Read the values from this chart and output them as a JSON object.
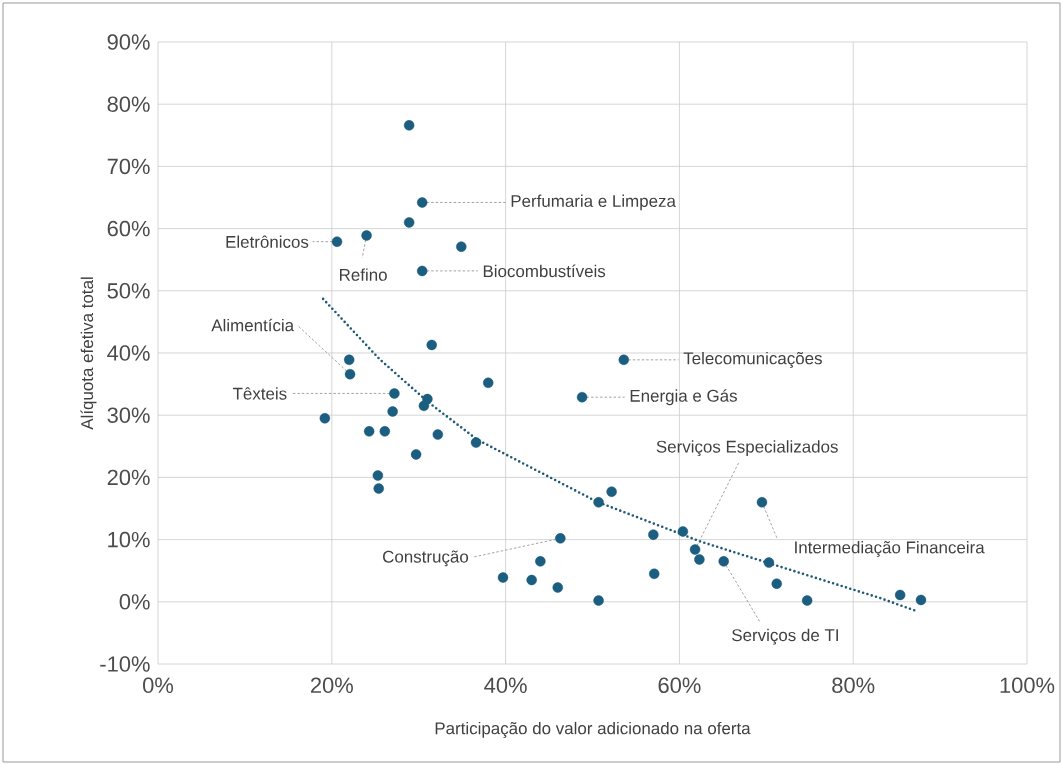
{
  "chart_data": {
    "type": "scatter",
    "xlabel": "Participação do valor adicionado na oferta",
    "ylabel": "Alíquota efetiva total",
    "xlim": [
      0,
      100
    ],
    "ylim": [
      -10,
      90
    ],
    "xticks": [
      {
        "value": 0,
        "label": "0%"
      },
      {
        "value": 20,
        "label": "20%"
      },
      {
        "value": 40,
        "label": "40%"
      },
      {
        "value": 60,
        "label": "60%"
      },
      {
        "value": 80,
        "label": "80%"
      },
      {
        "value": 100,
        "label": "100%"
      }
    ],
    "yticks": [
      {
        "value": -10,
        "label": "-10%"
      },
      {
        "value": 0,
        "label": "0%"
      },
      {
        "value": 10,
        "label": "10%"
      },
      {
        "value": 20,
        "label": "20%"
      },
      {
        "value": 30,
        "label": "30%"
      },
      {
        "value": 40,
        "label": "40%"
      },
      {
        "value": 50,
        "label": "50%"
      },
      {
        "value": 60,
        "label": "60%"
      },
      {
        "value": 70,
        "label": "70%"
      },
      {
        "value": 80,
        "label": "80%"
      },
      {
        "value": 90,
        "label": "90%"
      }
    ],
    "grid": true,
    "series": [
      {
        "color": "#1b5e80",
        "marker": "circle",
        "x": [
          28.9,
          30.4,
          28.9,
          20.6,
          24.0,
          34.9,
          30.4,
          31.5,
          22.0,
          22.1,
          38.0,
          27.2,
          31.0,
          30.6,
          27.0,
          19.2,
          24.3,
          26.1,
          32.2,
          36.6,
          29.7,
          25.3,
          25.4,
          53.6,
          48.8,
          52.2,
          50.7,
          46.3,
          44.0,
          39.7,
          43.0,
          46.0,
          50.7,
          57.0,
          60.4,
          61.8,
          62.3,
          57.1,
          69.5,
          65.1,
          70.3,
          71.2,
          74.7,
          85.4,
          87.8
        ],
        "values": [
          76.6,
          64.2,
          61.0,
          57.9,
          58.9,
          57.1,
          53.2,
          41.3,
          38.9,
          36.6,
          35.2,
          33.5,
          32.6,
          31.5,
          30.6,
          29.5,
          27.4,
          27.4,
          26.9,
          25.6,
          23.7,
          20.3,
          18.2,
          38.9,
          32.9,
          17.7,
          16.0,
          10.2,
          6.5,
          3.9,
          3.5,
          2.3,
          0.2,
          10.8,
          11.3,
          8.4,
          6.8,
          4.5,
          16.0,
          6.5,
          6.3,
          2.9,
          0.2,
          1.1,
          0.3
        ]
      },
      {
        "type": "line",
        "color": "#1f5a78",
        "line_style": "dotted",
        "marker": "none",
        "x": [
          19.0,
          25.5,
          31.1,
          36.7,
          50.5,
          62.4,
          70.1,
          83.1,
          87.5
        ],
        "values": [
          48.7,
          39.0,
          32.1,
          26.1,
          16.1,
          9.7,
          6.3,
          0.6,
          -1.6
        ]
      }
    ],
    "annotations": [
      {
        "text": "Perfumaria e Limpeza",
        "x": 30.4,
        "y": 64.2
      },
      {
        "text": "Eletrônicos",
        "x": 20.6,
        "y": 57.9
      },
      {
        "text": "Refino",
        "x": 24.0,
        "y": 58.9
      },
      {
        "text": "Biocombustíveis",
        "x": 30.4,
        "y": 53.2
      },
      {
        "text": "Alimentícia",
        "x": 22.1,
        "y": 36.6
      },
      {
        "text": "Têxteis",
        "x": 27.2,
        "y": 33.5
      },
      {
        "text": "Telecomunicações",
        "x": 53.6,
        "y": 38.9
      },
      {
        "text": "Energia e Gás",
        "x": 48.8,
        "y": 32.9
      },
      {
        "text": "Serviços Especializados",
        "x": 61.8,
        "y": 8.4
      },
      {
        "text": "Intermediação Financeira",
        "x": 69.5,
        "y": 16.0
      },
      {
        "text": "Construção",
        "x": 46.3,
        "y": 10.2
      },
      {
        "text": "Serviços de TI",
        "x": 65.1,
        "y": 6.5
      }
    ]
  }
}
